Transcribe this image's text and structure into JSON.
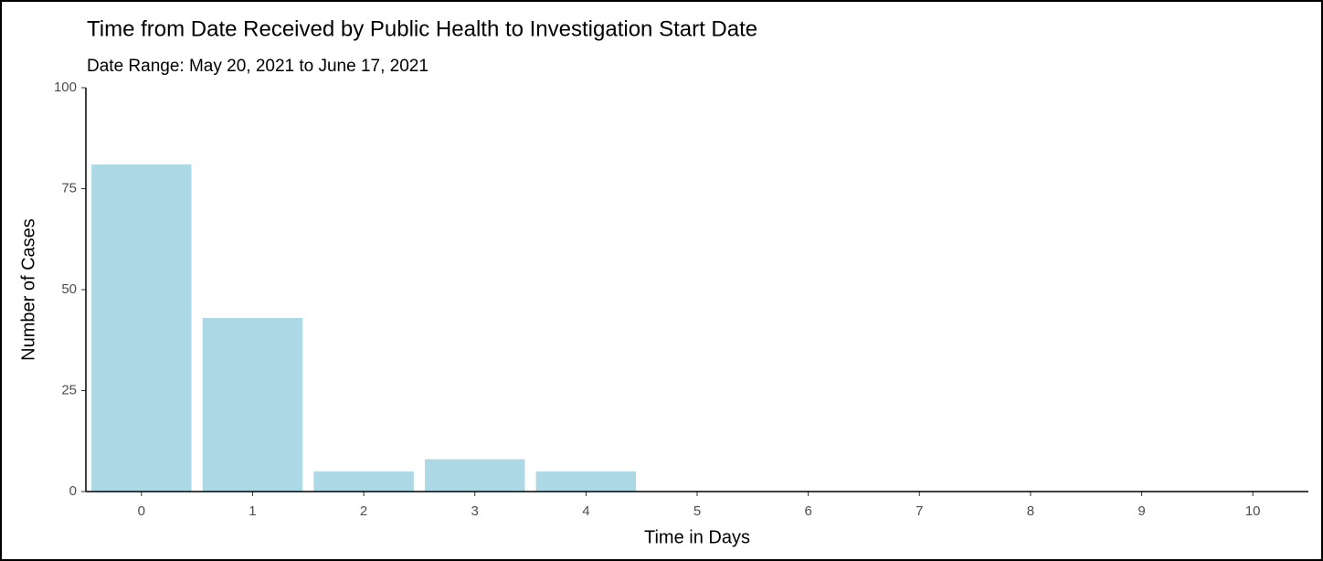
{
  "chart_data": {
    "type": "bar",
    "title": "Time from Date Received by Public Health to Investigation Start Date",
    "subtitle": "Date Range: May 20, 2021 to June 17, 2021",
    "x_label": "Time in Days",
    "y_label": "Number of Cases",
    "categories": [
      0,
      1,
      2,
      3,
      4,
      5,
      6,
      7,
      8,
      9,
      10
    ],
    "values": [
      81,
      43,
      5,
      8,
      5,
      0,
      0,
      0,
      0,
      0,
      0
    ],
    "color": "#add8e6",
    "ylim": [
      0,
      100
    ],
    "yticks": [
      0,
      25,
      50,
      75,
      100
    ],
    "grid": false
  }
}
